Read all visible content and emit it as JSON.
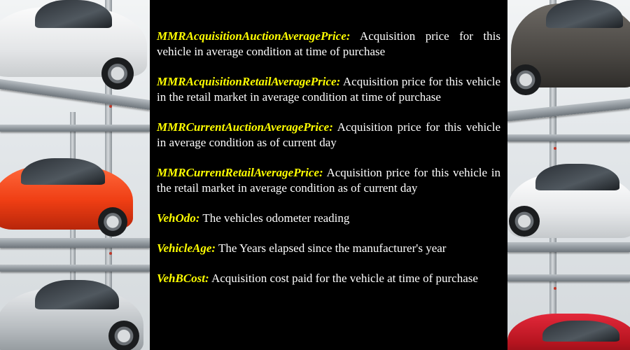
{
  "definitions": [
    {
      "term": "MMRAcquisitionAuctionAveragePrice:",
      "text": " Acquisition price for this vehicle in average condition at time of purchase"
    },
    {
      "term": "MMRAcquisitionRetailAveragePrice:",
      "text": " Acquisition price for this vehicle in the retail market in average condition at time of purchase"
    },
    {
      "term": "MMRCurrentAuctionAveragePrice:",
      "text": " Acquisition price for this vehicle in average condition as of current day"
    },
    {
      "term": "MMRCurrentRetailAveragePrice:",
      "text": " Acquisition price for this vehicle in the retail market in average condition as of current day"
    },
    {
      "term": "VehOdo:",
      "text": " The vehicles odometer reading"
    },
    {
      "term": "VehicleAge:",
      "text": " The Years elapsed since the manufacturer's year"
    },
    {
      "term": "VehBCost:",
      "text": " Acquisition cost paid for the vehicle at time of purchase"
    }
  ],
  "colors": {
    "panel_background": "#000000",
    "term_color": "#ffff00",
    "text_color": "#ffffff"
  },
  "background": {
    "left_image": "car-parking-stacker-photo",
    "right_image": "car-parking-stacker-photo"
  }
}
